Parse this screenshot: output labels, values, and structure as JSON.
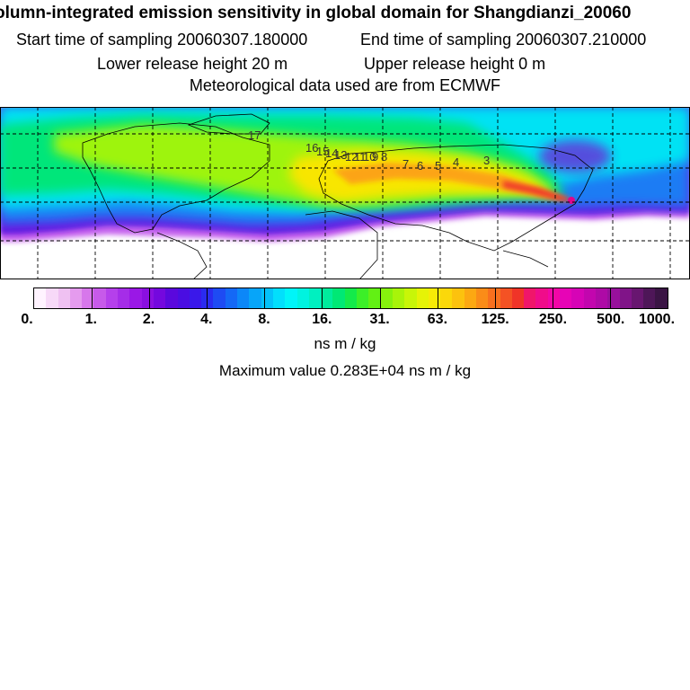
{
  "header": {
    "title": "olumn-integrated emission sensitivity in global domain for Shangdianzi_20060",
    "start_time": "Start time of sampling 20060307.180000",
    "end_time": "End time of sampling 20060307.210000",
    "lower_release": "Lower release height   20 m",
    "upper_release": "Upper release height    0 m",
    "met_data": "Meteorological data used are from ECMWF"
  },
  "map": {
    "time_labels": [
      {
        "text": "17"
      },
      {
        "text": "16"
      },
      {
        "text": "15"
      },
      {
        "text": "14"
      },
      {
        "text": "13"
      },
      {
        "text": "12"
      },
      {
        "text": "11"
      },
      {
        "text": "10"
      },
      {
        "text": "9"
      },
      {
        "text": "8"
      },
      {
        "text": "7"
      },
      {
        "text": "6"
      },
      {
        "text": "5"
      },
      {
        "text": "4"
      },
      {
        "text": "3"
      }
    ],
    "receptor": "Shangdianzi"
  },
  "legend": {
    "tick_labels": [
      "0.",
      "1.",
      "2.",
      "4.",
      "8.",
      "16.",
      "31.",
      "63.",
      "125.",
      "250.",
      "500.",
      "1000."
    ],
    "colors": [
      "#fff3ff",
      "#f7d9f8",
      "#efc1f2",
      "#e59bee",
      "#d777eb",
      "#c75aea",
      "#b540eb",
      "#a52de8",
      "#9a18e6",
      "#8a0fe0",
      "#7408de",
      "#5a08dd",
      "#4a0de2",
      "#3a18ea",
      "#2a2bf0",
      "#1e4bf3",
      "#1468f6",
      "#0c87f8",
      "#07a5f9",
      "#04c2fa",
      "#02dffc",
      "#00f5f8",
      "#00f3e0",
      "#00f0c0",
      "#00ec9c",
      "#00e875",
      "#14ea4a",
      "#3cef28",
      "#62f014",
      "#86f20d",
      "#a8f40a",
      "#c8f608",
      "#e6f306",
      "#f7eb06",
      "#fbd80a",
      "#fcc20e",
      "#fca812",
      "#fa8c18",
      "#f8701e",
      "#f45224",
      "#f03428",
      "#f0166a",
      "#f00c8a",
      "#f206a6",
      "#e704b6",
      "#d604b6",
      "#c206ae",
      "#ae0aa6",
      "#98109c",
      "#801488",
      "#681670",
      "#4e1658",
      "#3a1444"
    ],
    "unit": "ns m / kg",
    "max_value": "Maximum value  0.283E+04 ns m / kg"
  }
}
